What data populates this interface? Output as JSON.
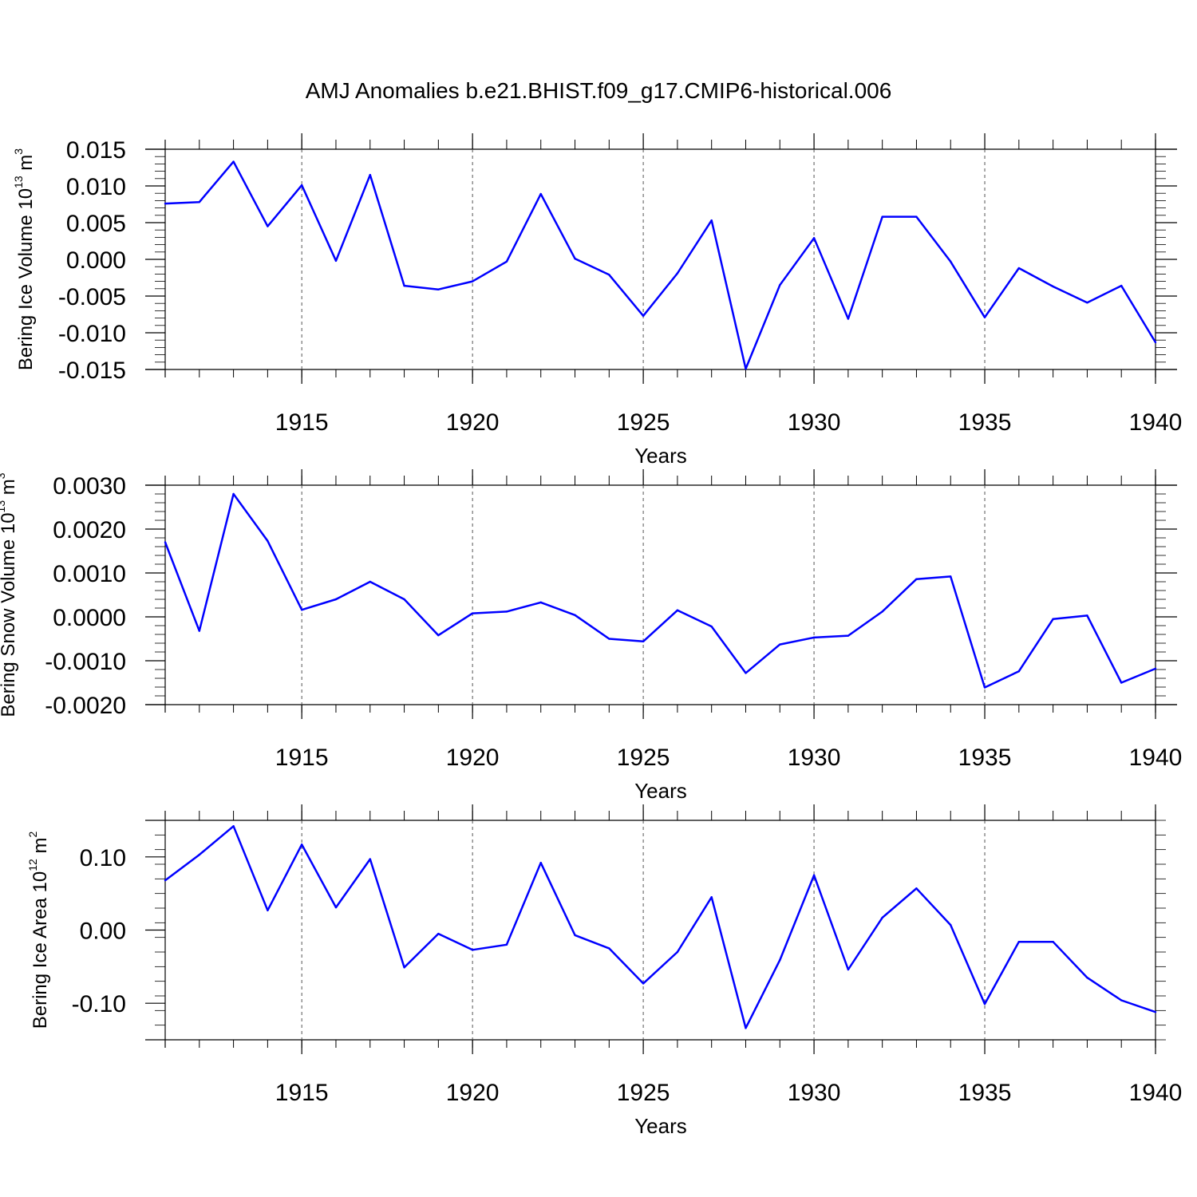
{
  "title": "AMJ Anomalies b.e21.BHIST.f09_g17.CMIP6-historical.006",
  "line_color": "#0000ff",
  "chart_data": [
    {
      "type": "line",
      "title": "AMJ Anomalies b.e21.BHIST.f09_g17.CMIP6-historical.006",
      "xlabel": "Years",
      "ylabel": {
        "prefix": "Bering Ice Volume 10",
        "exponent": "13",
        "unit": " m",
        "unit_exponent": "3"
      },
      "xlim": [
        1911,
        1940
      ],
      "ylim": [
        -0.015,
        0.015
      ],
      "xticks": [
        "1915",
        "1920",
        "1925",
        "1930",
        "1935",
        "1940"
      ],
      "yticks": [
        "0.015",
        "0.010",
        "0.005",
        "0.000",
        "-0.005",
        "-0.010",
        "-0.015"
      ],
      "x": [
        1911,
        1912,
        1913,
        1914,
        1915,
        1916,
        1917,
        1918,
        1919,
        1920,
        1921,
        1922,
        1923,
        1924,
        1925,
        1926,
        1927,
        1928,
        1929,
        1930,
        1931,
        1932,
        1933,
        1934,
        1935,
        1936,
        1937,
        1938,
        1939,
        1940
      ],
      "series": [
        {
          "name": "Bering Ice Volume",
          "values": [
            0.0076,
            0.0078,
            0.0133,
            0.0045,
            0.0101,
            -0.0002,
            0.0115,
            -0.0036,
            -0.0041,
            -0.003,
            -0.0003,
            0.0089,
            0.0001,
            -0.0021,
            -0.0077,
            -0.0019,
            0.0053,
            -0.0149,
            -0.0035,
            0.0029,
            -0.0081,
            0.0058,
            0.0058,
            -0.0003,
            -0.0079,
            -0.0012,
            -0.0037,
            -0.0059,
            -0.0036,
            -0.0113
          ]
        }
      ]
    },
    {
      "type": "line",
      "xlabel": "Years",
      "ylabel": {
        "prefix": "Bering Snow Volume 10",
        "exponent": "13",
        "unit": " m",
        "unit_exponent": "3"
      },
      "xlim": [
        1911,
        1940
      ],
      "ylim": [
        -0.002,
        0.003
      ],
      "xticks": [
        "1915",
        "1920",
        "1925",
        "1930",
        "1935",
        "1940"
      ],
      "yticks": [
        "0.0030",
        "0.0020",
        "0.0010",
        "0.0000",
        "-0.0010",
        "-0.0020"
      ],
      "x": [
        1911,
        1912,
        1913,
        1914,
        1915,
        1916,
        1917,
        1918,
        1919,
        1920,
        1921,
        1922,
        1923,
        1924,
        1925,
        1926,
        1927,
        1928,
        1929,
        1930,
        1931,
        1932,
        1933,
        1934,
        1935,
        1936,
        1937,
        1938,
        1939,
        1940
      ],
      "series": [
        {
          "name": "Bering Snow Volume",
          "values": [
            0.0017,
            -0.00032,
            0.0028,
            0.00173,
            0.00016,
            0.0004,
            0.0008,
            0.0004,
            -0.00042,
            8e-05,
            0.00012,
            0.00033,
            4e-05,
            -0.0005,
            -0.00056,
            0.00015,
            -0.00022,
            -0.00128,
            -0.00063,
            -0.00047,
            -0.00043,
            0.00012,
            0.00086,
            0.00092,
            -0.00161,
            -0.00124,
            -5e-05,
            3e-05,
            -0.0015,
            -0.00118
          ]
        }
      ]
    },
    {
      "type": "line",
      "xlabel": "Years",
      "ylabel": {
        "prefix": "Bering Ice Area 10",
        "exponent": "12",
        "unit": " m",
        "unit_exponent": "2"
      },
      "xlim": [
        1911,
        1940
      ],
      "ylim": [
        -0.15,
        0.15
      ],
      "xticks": [
        "1915",
        "1920",
        "1925",
        "1930",
        "1935",
        "1940"
      ],
      "yticks": [
        "0.10",
        "0.00",
        "-0.10"
      ],
      "x": [
        1911,
        1912,
        1913,
        1914,
        1915,
        1916,
        1917,
        1918,
        1919,
        1920,
        1921,
        1922,
        1923,
        1924,
        1925,
        1926,
        1927,
        1928,
        1929,
        1930,
        1931,
        1932,
        1933,
        1934,
        1935,
        1936,
        1937,
        1938,
        1939,
        1940
      ],
      "series": [
        {
          "name": "Bering Ice Area",
          "values": [
            0.068,
            0.103,
            0.142,
            0.027,
            0.117,
            0.031,
            0.097,
            -0.051,
            -0.005,
            -0.027,
            -0.02,
            0.092,
            -0.007,
            -0.025,
            -0.073,
            -0.03,
            0.045,
            -0.134,
            -0.041,
            0.075,
            -0.054,
            0.017,
            0.057,
            0.007,
            -0.101,
            -0.016,
            -0.016,
            -0.065,
            -0.096,
            -0.112
          ]
        }
      ]
    }
  ]
}
